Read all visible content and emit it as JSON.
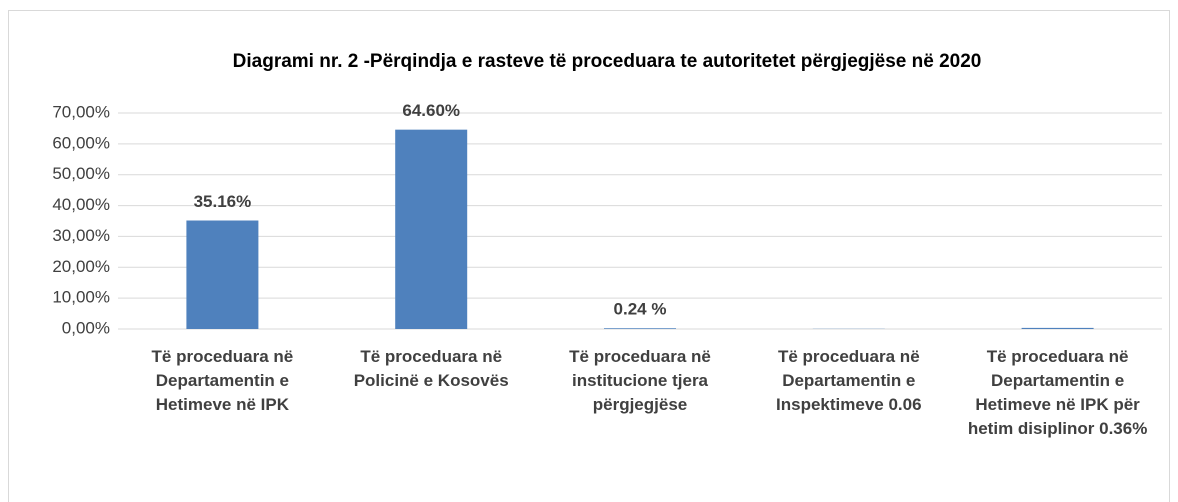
{
  "chart_data": {
    "type": "bar",
    "title": "Diagrami nr. 2 -Përqindja e rasteve të proceduara te autoritetet përgjegjëse në 2020",
    "categories": [
      "Të proceduara në Departamentin e Hetimeve në IPK",
      "Të proceduara në Policinë e Kosovës",
      "Të proceduara në institucione tjera përgjegjëse",
      "Të proceduara në Departamentin e Inspektimeve 0.06",
      "Të proceduara në Departamentin e Hetimeve në IPK për hetim disiplinor 0.36%"
    ],
    "values": [
      35.16,
      64.6,
      0.24,
      0.06,
      0.36
    ],
    "value_labels": [
      "35.16%",
      "64.60%",
      "0.24 %",
      null,
      null
    ],
    "color": "#4f81bd",
    "ylim": [
      0,
      70
    ],
    "yticks": [
      {
        "value": 0,
        "label": "0,00%"
      },
      {
        "value": 10,
        "label": "10,00%"
      },
      {
        "value": 20,
        "label": "20,00%"
      },
      {
        "value": 30,
        "label": "30,00%"
      },
      {
        "value": 40,
        "label": "40,00%"
      },
      {
        "value": 50,
        "label": "50,00%"
      },
      {
        "value": 60,
        "label": "60,00%"
      },
      {
        "value": 70,
        "label": "70,00%"
      }
    ],
    "grid": true
  }
}
